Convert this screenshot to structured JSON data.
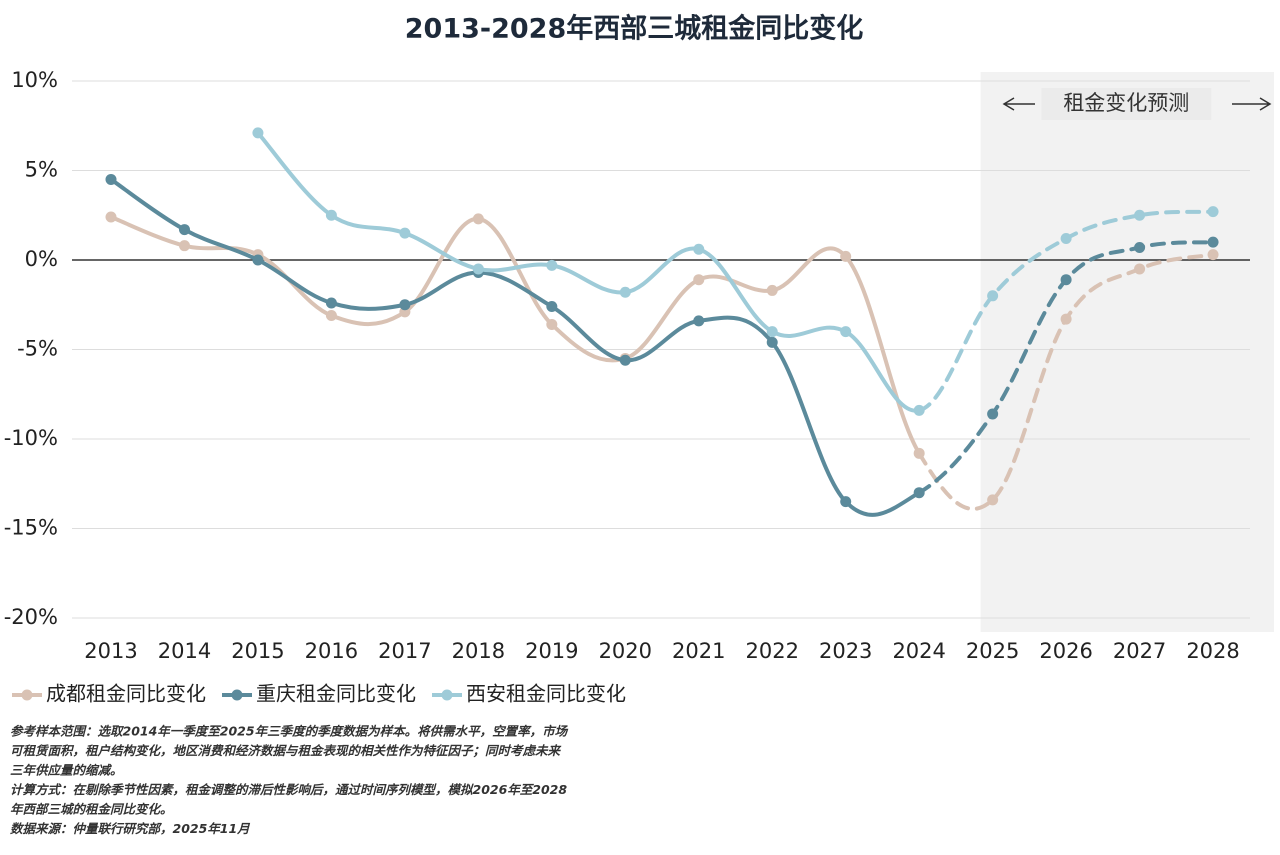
{
  "chart_data": {
    "type": "line",
    "title": "2013-2028年西部三城租金同比变化",
    "categories": [
      "2013",
      "2014",
      "2015",
      "2016",
      "2017",
      "2018",
      "2019",
      "2020",
      "2021",
      "2022",
      "2023",
      "2024",
      "2025",
      "2026",
      "2027",
      "2028"
    ],
    "series": [
      {
        "name": "成都租金同比变化",
        "color": "#d9c2b4",
        "values": [
          2.4,
          0.8,
          0.3,
          -3.1,
          -2.9,
          2.3,
          -3.6,
          -5.5,
          -1.1,
          -1.7,
          0.2,
          -10.8,
          -13.4,
          -3.3,
          -0.5,
          0.3
        ]
      },
      {
        "name": "重庆租金同比变化",
        "color": "#5b8a9b",
        "values": [
          4.5,
          1.7,
          0.0,
          -2.4,
          -2.5,
          -0.7,
          -2.6,
          -5.6,
          -3.4,
          -4.6,
          -13.5,
          -13.0,
          -8.6,
          -1.1,
          0.7,
          1.0
        ]
      },
      {
        "name": "西安租金同比变化",
        "color": "#9ecbd8",
        "values": [
          null,
          null,
          7.1,
          2.5,
          1.5,
          -0.5,
          -0.3,
          -1.8,
          0.6,
          -4.0,
          -4.0,
          -8.4,
          -2.0,
          1.2,
          2.5,
          2.7
        ]
      }
    ],
    "ylim": [
      -20,
      10
    ],
    "yticks": [
      {
        "value": -20,
        "label": "-20%"
      },
      {
        "value": -15,
        "label": "-15%"
      },
      {
        "value": -10,
        "label": "-10%"
      },
      {
        "value": -5,
        "label": "-5%"
      },
      {
        "value": 0,
        "label": "0%"
      },
      {
        "value": 5,
        "label": "5%"
      },
      {
        "value": 10,
        "label": "10%"
      }
    ],
    "grid": true,
    "legend": "bottom-left",
    "forecast": {
      "label": "租金变化预测",
      "start": "2025"
    },
    "notes": [
      "参考样本范围：选取2014年一季度至2025年三季度的季度数据为样本。将供需水平，空置率，市场",
      "可租赁面积，租户结构变化，地区消费和经济数据与租金表现的相关性作为特征因子；同时考虑未来",
      "三年供应量的缩减。",
      "计算方式：在剔除季节性因素，租金调整的滞后性影响后，通过时间序列模型，模拟2026年至2028",
      "年西部三城的租金同比变化。",
      "数据来源：仲量联行研究部，2025年11月"
    ]
  }
}
